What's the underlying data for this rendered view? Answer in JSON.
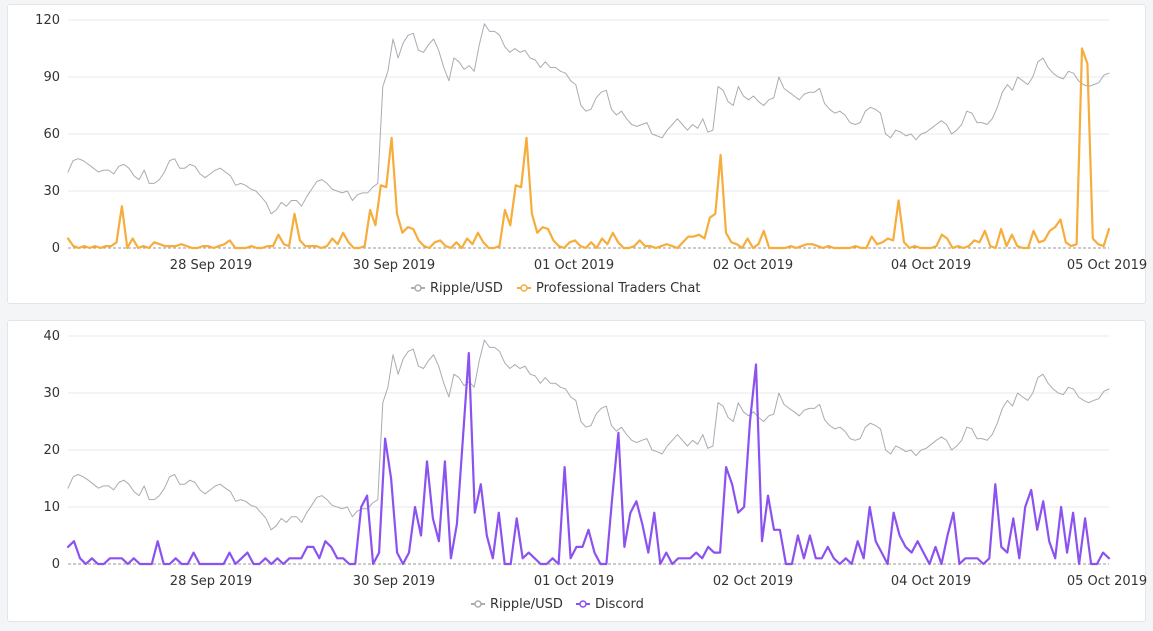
{
  "chart_data": [
    {
      "type": "line",
      "title": "",
      "xlabel": "",
      "ylabel": "",
      "x_tick_labels": [
        "28 Sep 2019",
        "30 Sep 2019",
        "01 Oct 2019",
        "02 Oct 2019",
        "04 Oct 2019",
        "05 Oct 2019"
      ],
      "y_ticks": [
        0,
        30,
        60,
        90,
        120
      ],
      "ylim": [
        0,
        120
      ],
      "grid": true,
      "legend_position": "bottom-center",
      "series": [
        {
          "name": "Ripple/USD",
          "color": "#a8acb3",
          "values": [
            40,
            46,
            47,
            46,
            44,
            42,
            40,
            41,
            41,
            39,
            43,
            44,
            42,
            38,
            36,
            41,
            34,
            34,
            36,
            40,
            46,
            47,
            42,
            42,
            44,
            43,
            39,
            37,
            39,
            41,
            42,
            40,
            38,
            33,
            34,
            33,
            31,
            30,
            27,
            24,
            18,
            20,
            24,
            22,
            25,
            25,
            22,
            27,
            31,
            35,
            36,
            34,
            31,
            30,
            29,
            30,
            25,
            28,
            29,
            29,
            32,
            34,
            85,
            93,
            110,
            100,
            108,
            112,
            113,
            104,
            103,
            107,
            110,
            104,
            95,
            88,
            100,
            98,
            94,
            96,
            93,
            107,
            118,
            114,
            114,
            112,
            106,
            103,
            105,
            103,
            104,
            100,
            99,
            95,
            98,
            95,
            95,
            93,
            92,
            88,
            86,
            75,
            72,
            73,
            79,
            82,
            83,
            73,
            70,
            72,
            68,
            65,
            64,
            65,
            66,
            60,
            59,
            58,
            62,
            65,
            68,
            65,
            62,
            65,
            63,
            68,
            61,
            62,
            85,
            83,
            77,
            75,
            85,
            80,
            78,
            80,
            77,
            75,
            78,
            79,
            90,
            84,
            82,
            80,
            78,
            81,
            82,
            82,
            84,
            76,
            73,
            71,
            72,
            70,
            66,
            65,
            66,
            72,
            74,
            73,
            71,
            60,
            58,
            62,
            61,
            59,
            60,
            57,
            60,
            61,
            63,
            65,
            67,
            65,
            60,
            62,
            65,
            72,
            71,
            66,
            66,
            65,
            68,
            74,
            82,
            86,
            83,
            90,
            88,
            86,
            90,
            98,
            100,
            95,
            92,
            90,
            89,
            93,
            92,
            88,
            86,
            85,
            86,
            87,
            91,
            92
          ]
        },
        {
          "name": "Professional Traders Chat",
          "color": "#f6ad3c",
          "values": [
            5,
            1,
            0,
            1,
            0,
            1,
            0,
            1,
            1,
            3,
            22,
            0,
            5,
            0,
            1,
            0,
            3,
            2,
            1,
            1,
            1,
            2,
            1,
            0,
            0,
            1,
            1,
            0,
            1,
            2,
            4,
            0,
            0,
            0,
            1,
            0,
            0,
            1,
            1,
            7,
            2,
            1,
            18,
            4,
            1,
            1,
            1,
            0,
            1,
            5,
            2,
            8,
            3,
            0,
            0,
            1,
            20,
            12,
            33,
            32,
            58,
            18,
            8,
            11,
            10,
            4,
            1,
            0,
            3,
            4,
            1,
            0,
            3,
            0,
            5,
            2,
            8,
            3,
            0,
            0,
            1,
            20,
            12,
            33,
            32,
            58,
            18,
            8,
            11,
            10,
            4,
            1,
            0,
            3,
            4,
            1,
            0,
            3,
            0,
            5,
            2,
            8,
            3,
            0,
            0,
            1,
            4,
            1,
            1,
            0,
            1,
            2,
            1,
            0,
            3,
            6,
            6,
            7,
            5,
            16,
            18,
            49,
            8,
            3,
            2,
            0,
            5,
            0,
            2,
            9,
            0,
            0,
            0,
            0,
            1,
            0,
            1,
            2,
            2,
            1,
            0,
            1,
            0,
            0,
            0,
            0,
            1,
            0,
            0,
            6,
            2,
            3,
            5,
            4,
            25,
            3,
            0,
            1,
            0,
            0,
            0,
            1,
            7,
            5,
            0,
            1,
            0,
            1,
            4,
            3,
            9,
            1,
            0,
            10,
            1,
            7,
            1,
            0,
            0,
            9,
            3,
            4,
            9,
            11,
            15,
            3,
            1,
            2,
            105,
            97,
            5,
            2,
            1,
            10
          ]
        }
      ]
    },
    {
      "type": "line",
      "title": "",
      "xlabel": "",
      "ylabel": "",
      "x_tick_labels": [
        "28 Sep 2019",
        "30 Sep 2019",
        "01 Oct 2019",
        "02 Oct 2019",
        "04 Oct 2019",
        "05 Oct 2019"
      ],
      "y_ticks": [
        0,
        10,
        20,
        30,
        40
      ],
      "ylim": [
        0,
        40
      ],
      "grid": true,
      "legend_position": "bottom-center",
      "series": [
        {
          "name": "Ripple/USD",
          "color": "#a8acb3",
          "values": [
            13.3,
            15.3,
            15.7,
            15.3,
            14.7,
            14,
            13.3,
            13.7,
            13.7,
            13,
            14.3,
            14.7,
            14,
            12.7,
            12,
            13.7,
            11.3,
            11.3,
            12,
            13.3,
            15.3,
            15.7,
            14,
            14,
            14.7,
            14.3,
            13,
            12.3,
            13,
            13.7,
            14,
            13.3,
            12.7,
            11,
            11.3,
            11,
            10.3,
            10,
            9,
            8,
            6,
            6.7,
            8,
            7.3,
            8.3,
            8.3,
            7.3,
            9,
            10.3,
            11.7,
            12,
            11.3,
            10.3,
            10,
            9.7,
            10,
            8.3,
            9.3,
            9.7,
            9.7,
            10.7,
            11.3,
            28.3,
            31,
            36.7,
            33.3,
            36,
            37.3,
            37.7,
            34.7,
            34.3,
            35.7,
            36.7,
            34.7,
            31.7,
            29.3,
            33.3,
            32.7,
            31.3,
            32,
            31,
            35.7,
            39.3,
            38,
            38,
            37.3,
            35.3,
            34.3,
            35,
            34.3,
            34.7,
            33.3,
            33,
            31.7,
            32.7,
            31.7,
            31.7,
            31,
            30.7,
            29.3,
            28.7,
            25,
            24,
            24.3,
            26.3,
            27.3,
            27.7,
            24.3,
            23.3,
            24,
            22.7,
            21.7,
            21.3,
            21.7,
            22,
            20,
            19.7,
            19.3,
            20.7,
            21.7,
            22.7,
            21.7,
            20.7,
            21.7,
            21,
            22.7,
            20.3,
            20.7,
            28.3,
            27.7,
            25.7,
            25,
            28.3,
            26.7,
            26,
            26.7,
            25.7,
            25,
            26,
            26.3,
            30,
            28,
            27.3,
            26.7,
            26,
            27,
            27.3,
            27.3,
            28,
            25.3,
            24.3,
            23.7,
            24,
            23.3,
            22,
            21.7,
            22,
            24,
            24.7,
            24.3,
            23.7,
            20,
            19.3,
            20.7,
            20.3,
            19.7,
            20,
            19,
            20,
            20.3,
            21,
            21.7,
            22.3,
            21.7,
            20,
            20.7,
            21.7,
            24,
            23.7,
            22,
            22,
            21.7,
            22.7,
            24.7,
            27.3,
            28.7,
            27.7,
            30,
            29.3,
            28.7,
            30,
            32.7,
            33.3,
            31.7,
            30.7,
            30,
            29.7,
            31,
            30.7,
            29.3,
            28.7,
            28.3,
            28.7,
            29,
            30.3,
            30.7
          ]
        },
        {
          "name": "Discord",
          "color": "#8c52f0",
          "values": [
            3,
            4,
            1,
            0,
            1,
            0,
            0,
            1,
            1,
            1,
            0,
            1,
            0,
            0,
            0,
            4,
            0,
            0,
            1,
            0,
            0,
            2,
            0,
            0,
            0,
            0,
            0,
            2,
            0,
            1,
            2,
            0,
            0,
            1,
            0,
            1,
            0,
            1,
            1,
            1,
            3,
            3,
            1,
            4,
            3,
            1,
            1,
            0,
            0,
            10,
            12,
            0,
            2,
            22,
            15,
            2,
            0,
            2,
            10,
            5,
            18,
            8,
            4,
            18,
            1,
            7,
            22,
            37,
            9,
            14,
            5,
            1,
            9,
            0,
            0,
            8,
            1,
            2,
            1,
            0,
            0,
            1,
            0,
            17,
            1,
            3,
            3,
            6,
            2,
            0,
            0,
            12,
            23,
            3,
            9,
            11,
            7,
            2,
            9,
            0,
            2,
            0,
            1,
            1,
            1,
            2,
            1,
            3,
            2,
            2,
            17,
            14,
            9,
            10,
            25,
            35,
            4,
            12,
            6,
            6,
            0,
            0,
            5,
            1,
            5,
            1,
            1,
            3,
            1,
            0,
            1,
            0,
            4,
            1,
            10,
            4,
            2,
            0,
            9,
            5,
            3,
            2,
            4,
            2,
            0,
            3,
            0,
            5,
            9,
            0,
            1,
            1,
            1,
            0,
            1,
            14,
            3,
            2,
            8,
            1,
            10,
            13,
            6,
            11,
            4,
            1,
            10,
            2,
            9,
            0,
            8,
            0,
            0,
            2,
            1
          ]
        }
      ]
    }
  ]
}
